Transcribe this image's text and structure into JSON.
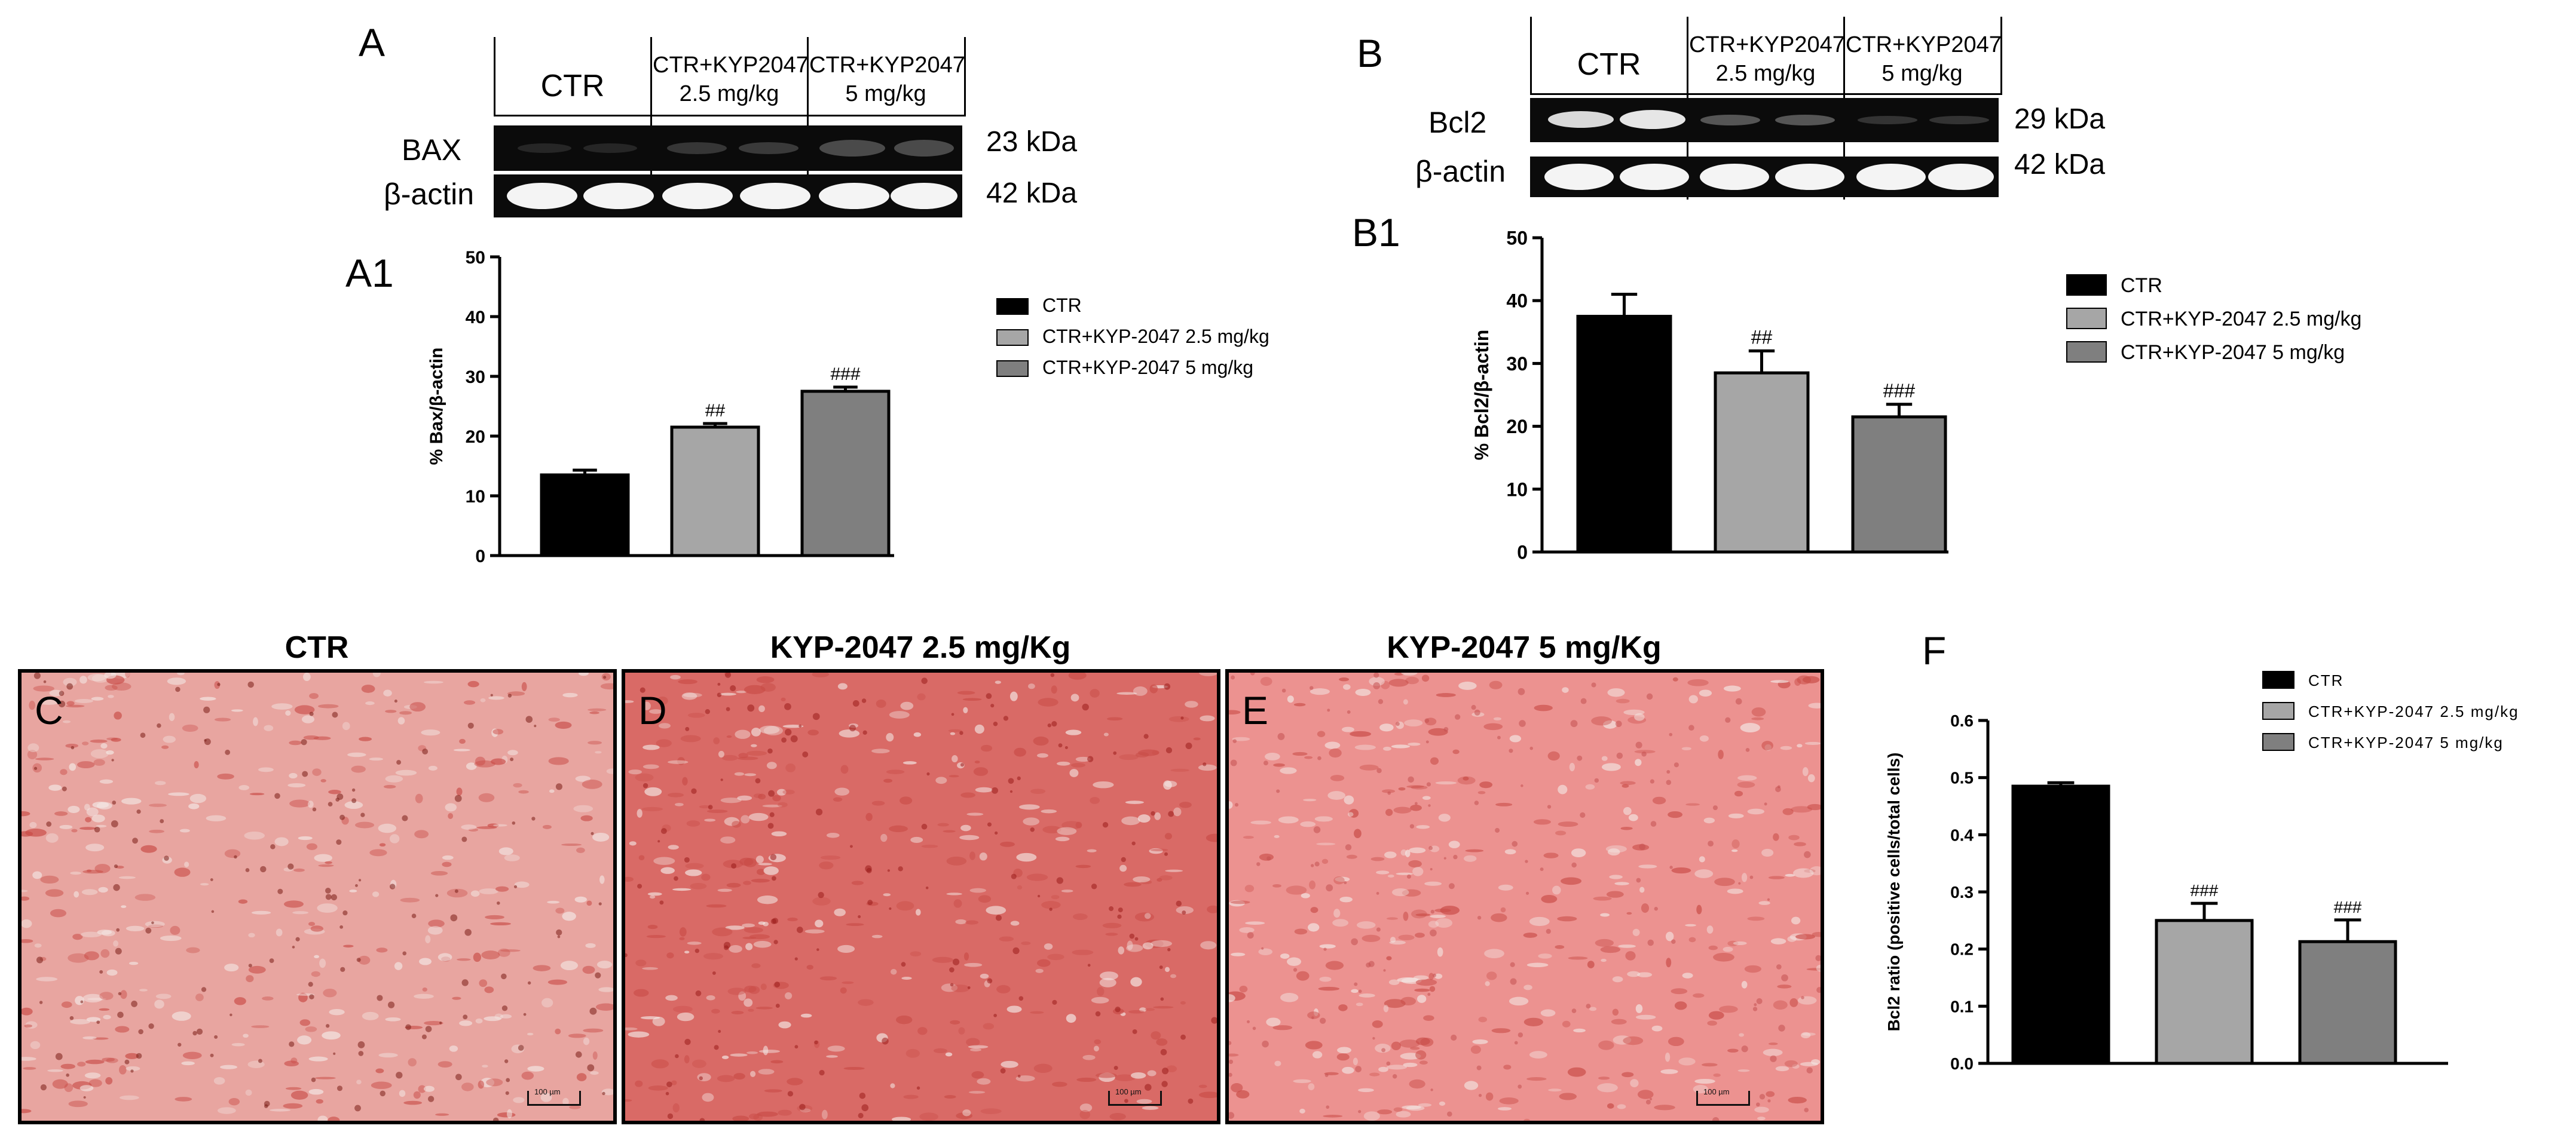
{
  "panel_A": {
    "letter": "A",
    "headers": [
      {
        "line1": "CTR",
        "line2": ""
      },
      {
        "line1": "CTR+KYP2047",
        "line2": "2.5 mg/kg"
      },
      {
        "line1": "CTR+KYP2047",
        "line2": "5 mg/kg"
      }
    ],
    "row1_label": "BAX",
    "row2_label": "β-actin",
    "row1_kda": "23 kDa",
    "row2_kda": "42 kDa"
  },
  "panel_B": {
    "letter": "B",
    "headers": [
      {
        "line1": "CTR",
        "line2": ""
      },
      {
        "line1": "CTR+KYP2047",
        "line2": "2.5 mg/kg"
      },
      {
        "line1": "CTR+KYP2047",
        "line2": "5 mg/kg"
      }
    ],
    "row1_label": "Bcl2",
    "row2_label": "β-actin",
    "row1_kda": "29 kDa",
    "row2_kda": "42 kDa"
  },
  "chart_data": [
    {
      "id": "A1",
      "letter": "A1",
      "type": "bar",
      "categories": [
        "CTR",
        "CTR+KYP-2047 2.5 mg/kg",
        "CTR+KYP-2047 5 mg/kg"
      ],
      "values": [
        13.5,
        21.5,
        27.5
      ],
      "errors": [
        0.8,
        0.6,
        0.7
      ],
      "significance": [
        "",
        "##",
        "###"
      ],
      "colors": [
        "#000000",
        "#a6a6a6",
        "#7f7f7f"
      ],
      "ylabel": "% Bax/β-actin",
      "xlabel": "",
      "ylim": [
        0,
        50
      ],
      "yticks": [
        "0",
        "10",
        "20",
        "30",
        "40",
        "50"
      ],
      "legend": [
        "CTR",
        "CTR+KYP-2047 2.5 mg/kg",
        "CTR+KYP-2047 5 mg/kg"
      ],
      "legend_position": "right"
    },
    {
      "id": "B1",
      "letter": "B1",
      "type": "bar",
      "categories": [
        "CTR",
        "CTR+KYP-2047 2.5 mg/kg",
        "CTR+KYP-2047 5 mg/kg"
      ],
      "values": [
        37.5,
        28.5,
        21.5
      ],
      "errors": [
        3.5,
        3.5,
        2.0
      ],
      "significance": [
        "",
        "##",
        "###"
      ],
      "colors": [
        "#000000",
        "#a6a6a6",
        "#7f7f7f"
      ],
      "ylabel": "% Bcl2/β-actin",
      "xlabel": "",
      "ylim": [
        0,
        50
      ],
      "yticks": [
        "0",
        "10",
        "20",
        "30",
        "40",
        "50"
      ],
      "legend": [
        "CTR",
        "CTR+KYP-2047 2.5 mg/kg",
        "CTR+KYP-2047 5 mg/kg"
      ],
      "legend_position": "right"
    },
    {
      "id": "F",
      "letter": "F",
      "type": "bar",
      "categories": [
        "CTR",
        "CTR+KYP-2047 2.5 mg/kg",
        "CTR+KYP-2047 5 mg/kg"
      ],
      "values": [
        0.485,
        0.25,
        0.213
      ],
      "errors": [
        0.006,
        0.03,
        0.038
      ],
      "significance": [
        "",
        "###",
        "###"
      ],
      "colors": [
        "#000000",
        "#a6a6a6",
        "#7f7f7f"
      ],
      "ylabel": "Bcl2 ratio (positive cells/total cells)",
      "xlabel": "",
      "ylim": [
        0,
        0.6
      ],
      "yticks": [
        "0.0",
        "0.1",
        "0.2",
        "0.3",
        "0.4",
        "0.5",
        "0.6"
      ],
      "legend": [
        "CTR",
        "CTR+KYP-2047 2.5 mg/kg",
        "CTR+KYP-2047 5 mg/kg"
      ],
      "legend_position": "top-right"
    }
  ],
  "micrographs": [
    {
      "letter": "C",
      "title": "CTR",
      "scale": "100 µm",
      "tint": "#e8a5a0",
      "dots": "#7a1e16"
    },
    {
      "letter": "D",
      "title": "KYP-2047  2.5 mg/Kg",
      "scale": "100 µm",
      "tint": "#d96a66",
      "dots": "#9b1c1a"
    },
    {
      "letter": "E",
      "title": "KYP-2047  5 mg/Kg",
      "scale": "100 µm",
      "tint": "#ec9290",
      "dots": "#c45050"
    }
  ]
}
